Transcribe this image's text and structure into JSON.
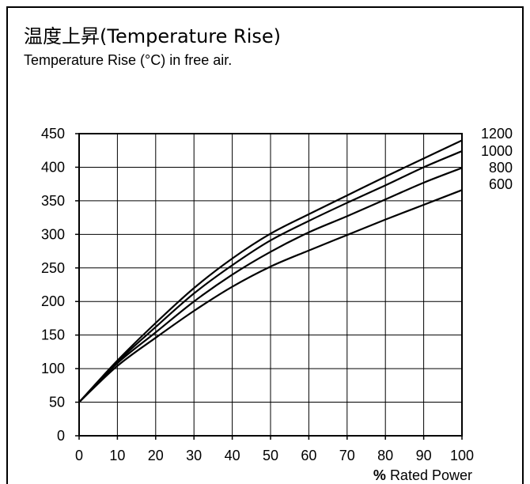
{
  "title": "温度上昇(Temperature Rise)",
  "subtitle": "Temperature Rise (°C) in free air.",
  "chart_data": {
    "type": "line",
    "x": [
      0,
      10,
      20,
      30,
      40,
      50,
      60,
      70,
      80,
      90,
      100
    ],
    "xlim": [
      0,
      100
    ],
    "ylim": [
      0,
      450
    ],
    "xticks": [
      "0",
      "10",
      "20",
      "30",
      "40",
      "50",
      "60",
      "70",
      "80",
      "90",
      "100"
    ],
    "yticks": [
      "0",
      "50",
      "100",
      "150",
      "200",
      "250",
      "300",
      "350",
      "400",
      "450"
    ],
    "xlabel": {
      "prefix": "%",
      "text": "Rated Power"
    },
    "ylabel": "",
    "grid": true,
    "legend": "right",
    "series": [
      {
        "name": "1200",
        "values": [
          50,
          112,
          168,
          220,
          264,
          301,
          330,
          358,
          386,
          413,
          440
        ]
      },
      {
        "name": "1000",
        "values": [
          50,
          110,
          162,
          212,
          254,
          291,
          320,
          347,
          373,
          400,
          424
        ]
      },
      {
        "name": "800",
        "values": [
          50,
          108,
          154,
          200,
          240,
          274,
          303,
          327,
          352,
          377,
          399
        ]
      },
      {
        "name": "600",
        "values": [
          50,
          104,
          146,
          186,
          222,
          252,
          276,
          299,
          322,
          344,
          366
        ]
      }
    ],
    "colors": {
      "line": "#000000",
      "grid": "#000000"
    }
  }
}
